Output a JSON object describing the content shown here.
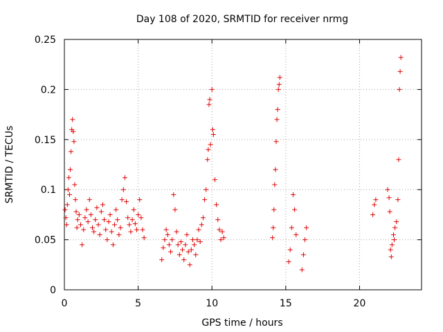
{
  "chart_data": {
    "type": "scatter",
    "title": "Day 108 of 2020, SRMTID for receiver nrmg",
    "xlabel": "GPS time / hours",
    "ylabel": "SRMTID / TECUs",
    "xlim": [
      0,
      24.2
    ],
    "ylim": [
      0,
      0.25
    ],
    "x_ticks": [
      0,
      5,
      10,
      15,
      20
    ],
    "y_ticks": [
      0,
      0.05,
      0.1,
      0.15,
      0.2,
      0.25
    ],
    "grid": true,
    "marker": "+",
    "color": "#e00000",
    "series": [
      {
        "name": "SRMTID",
        "points": [
          [
            0.05,
            0.08
          ],
          [
            0.1,
            0.072
          ],
          [
            0.15,
            0.065
          ],
          [
            0.2,
            0.085
          ],
          [
            0.25,
            0.1
          ],
          [
            0.3,
            0.112
          ],
          [
            0.35,
            0.095
          ],
          [
            0.4,
            0.12
          ],
          [
            0.45,
            0.138
          ],
          [
            0.5,
            0.16
          ],
          [
            0.55,
            0.17
          ],
          [
            0.6,
            0.158
          ],
          [
            0.65,
            0.148
          ],
          [
            0.7,
            0.105
          ],
          [
            0.75,
            0.09
          ],
          [
            0.8,
            0.078
          ],
          [
            0.85,
            0.062
          ],
          [
            0.9,
            0.07
          ],
          [
            1.0,
            0.075
          ],
          [
            1.1,
            0.065
          ],
          [
            1.2,
            0.045
          ],
          [
            1.3,
            0.06
          ],
          [
            1.4,
            0.072
          ],
          [
            1.5,
            0.08
          ],
          [
            1.6,
            0.068
          ],
          [
            1.7,
            0.09
          ],
          [
            1.8,
            0.075
          ],
          [
            1.9,
            0.062
          ],
          [
            2.0,
            0.058
          ],
          [
            2.1,
            0.07
          ],
          [
            2.2,
            0.082
          ],
          [
            2.3,
            0.065
          ],
          [
            2.4,
            0.055
          ],
          [
            2.5,
            0.078
          ],
          [
            2.6,
            0.085
          ],
          [
            2.7,
            0.07
          ],
          [
            2.8,
            0.06
          ],
          [
            2.9,
            0.05
          ],
          [
            3.0,
            0.068
          ],
          [
            3.1,
            0.075
          ],
          [
            3.2,
            0.058
          ],
          [
            3.3,
            0.045
          ],
          [
            3.4,
            0.065
          ],
          [
            3.5,
            0.08
          ],
          [
            3.6,
            0.07
          ],
          [
            3.7,
            0.055
          ],
          [
            3.8,
            0.062
          ],
          [
            3.9,
            0.09
          ],
          [
            4.0,
            0.1
          ],
          [
            4.1,
            0.112
          ],
          [
            4.2,
            0.088
          ],
          [
            4.3,
            0.072
          ],
          [
            4.4,
            0.065
          ],
          [
            4.5,
            0.058
          ],
          [
            4.6,
            0.07
          ],
          [
            4.7,
            0.08
          ],
          [
            4.8,
            0.066
          ],
          [
            4.9,
            0.06
          ],
          [
            5.0,
            0.075
          ],
          [
            5.1,
            0.09
          ],
          [
            5.2,
            0.072
          ],
          [
            5.3,
            0.06
          ],
          [
            5.4,
            0.052
          ],
          [
            6.6,
            0.03
          ],
          [
            6.7,
            0.042
          ],
          [
            6.8,
            0.05
          ],
          [
            6.9,
            0.06
          ],
          [
            7.0,
            0.055
          ],
          [
            7.1,
            0.045
          ],
          [
            7.2,
            0.038
          ],
          [
            7.3,
            0.05
          ],
          [
            7.4,
            0.095
          ],
          [
            7.5,
            0.08
          ],
          [
            7.6,
            0.058
          ],
          [
            7.7,
            0.045
          ],
          [
            7.8,
            0.035
          ],
          [
            7.9,
            0.048
          ],
          [
            8.0,
            0.04
          ],
          [
            8.1,
            0.03
          ],
          [
            8.2,
            0.045
          ],
          [
            8.3,
            0.055
          ],
          [
            8.4,
            0.038
          ],
          [
            8.5,
            0.025
          ],
          [
            8.6,
            0.04
          ],
          [
            8.7,
            0.05
          ],
          [
            8.8,
            0.045
          ],
          [
            8.9,
            0.035
          ],
          [
            9.0,
            0.05
          ],
          [
            9.1,
            0.06
          ],
          [
            9.2,
            0.048
          ],
          [
            9.3,
            0.065
          ],
          [
            9.4,
            0.072
          ],
          [
            9.5,
            0.09
          ],
          [
            9.6,
            0.1
          ],
          [
            9.7,
            0.13
          ],
          [
            9.75,
            0.14
          ],
          [
            9.8,
            0.185
          ],
          [
            9.85,
            0.19
          ],
          [
            9.9,
            0.145
          ],
          [
            10.0,
            0.2
          ],
          [
            10.05,
            0.16
          ],
          [
            10.1,
            0.155
          ],
          [
            10.2,
            0.11
          ],
          [
            10.3,
            0.085
          ],
          [
            10.4,
            0.07
          ],
          [
            10.5,
            0.06
          ],
          [
            10.6,
            0.05
          ],
          [
            10.7,
            0.058
          ],
          [
            10.8,
            0.052
          ],
          [
            14.1,
            0.052
          ],
          [
            14.15,
            0.062
          ],
          [
            14.2,
            0.08
          ],
          [
            14.25,
            0.105
          ],
          [
            14.3,
            0.12
          ],
          [
            14.35,
            0.148
          ],
          [
            14.4,
            0.17
          ],
          [
            14.45,
            0.18
          ],
          [
            14.5,
            0.2
          ],
          [
            14.55,
            0.205
          ],
          [
            14.6,
            0.212
          ],
          [
            15.2,
            0.028
          ],
          [
            15.3,
            0.04
          ],
          [
            15.4,
            0.062
          ],
          [
            15.5,
            0.095
          ],
          [
            15.6,
            0.08
          ],
          [
            15.7,
            0.055
          ],
          [
            16.1,
            0.02
          ],
          [
            16.2,
            0.035
          ],
          [
            16.3,
            0.05
          ],
          [
            16.4,
            0.062
          ],
          [
            20.9,
            0.075
          ],
          [
            21.0,
            0.085
          ],
          [
            21.1,
            0.09
          ],
          [
            21.9,
            0.1
          ],
          [
            22.0,
            0.092
          ],
          [
            22.05,
            0.078
          ],
          [
            22.1,
            0.04
          ],
          [
            22.15,
            0.033
          ],
          [
            22.2,
            0.045
          ],
          [
            22.3,
            0.055
          ],
          [
            22.35,
            0.05
          ],
          [
            22.4,
            0.062
          ],
          [
            22.5,
            0.068
          ],
          [
            22.6,
            0.09
          ],
          [
            22.65,
            0.13
          ],
          [
            22.7,
            0.2
          ],
          [
            22.75,
            0.218
          ],
          [
            22.8,
            0.232
          ]
        ]
      }
    ]
  }
}
